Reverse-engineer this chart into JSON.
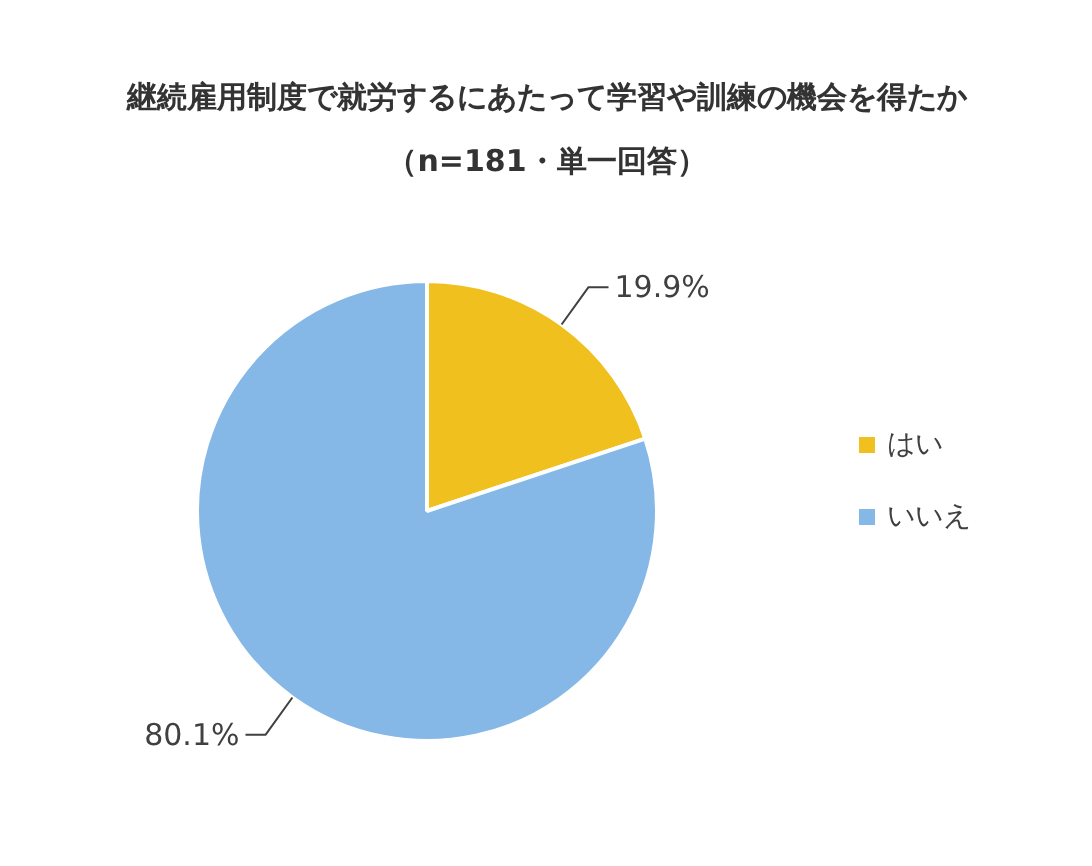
{
  "chart_data": {
    "type": "pie",
    "title": "継続雇用制度で就労するにあたって学習や訓練の機会を得たか",
    "subtitle": "（n=181・単一回答）",
    "categories": [
      "はい",
      "いいえ"
    ],
    "values": [
      19.9,
      80.1
    ],
    "colors": [
      "#f0c01e",
      "#85b8e6"
    ],
    "value_labels": [
      "19.9%",
      "80.1%"
    ],
    "legend": "right"
  }
}
